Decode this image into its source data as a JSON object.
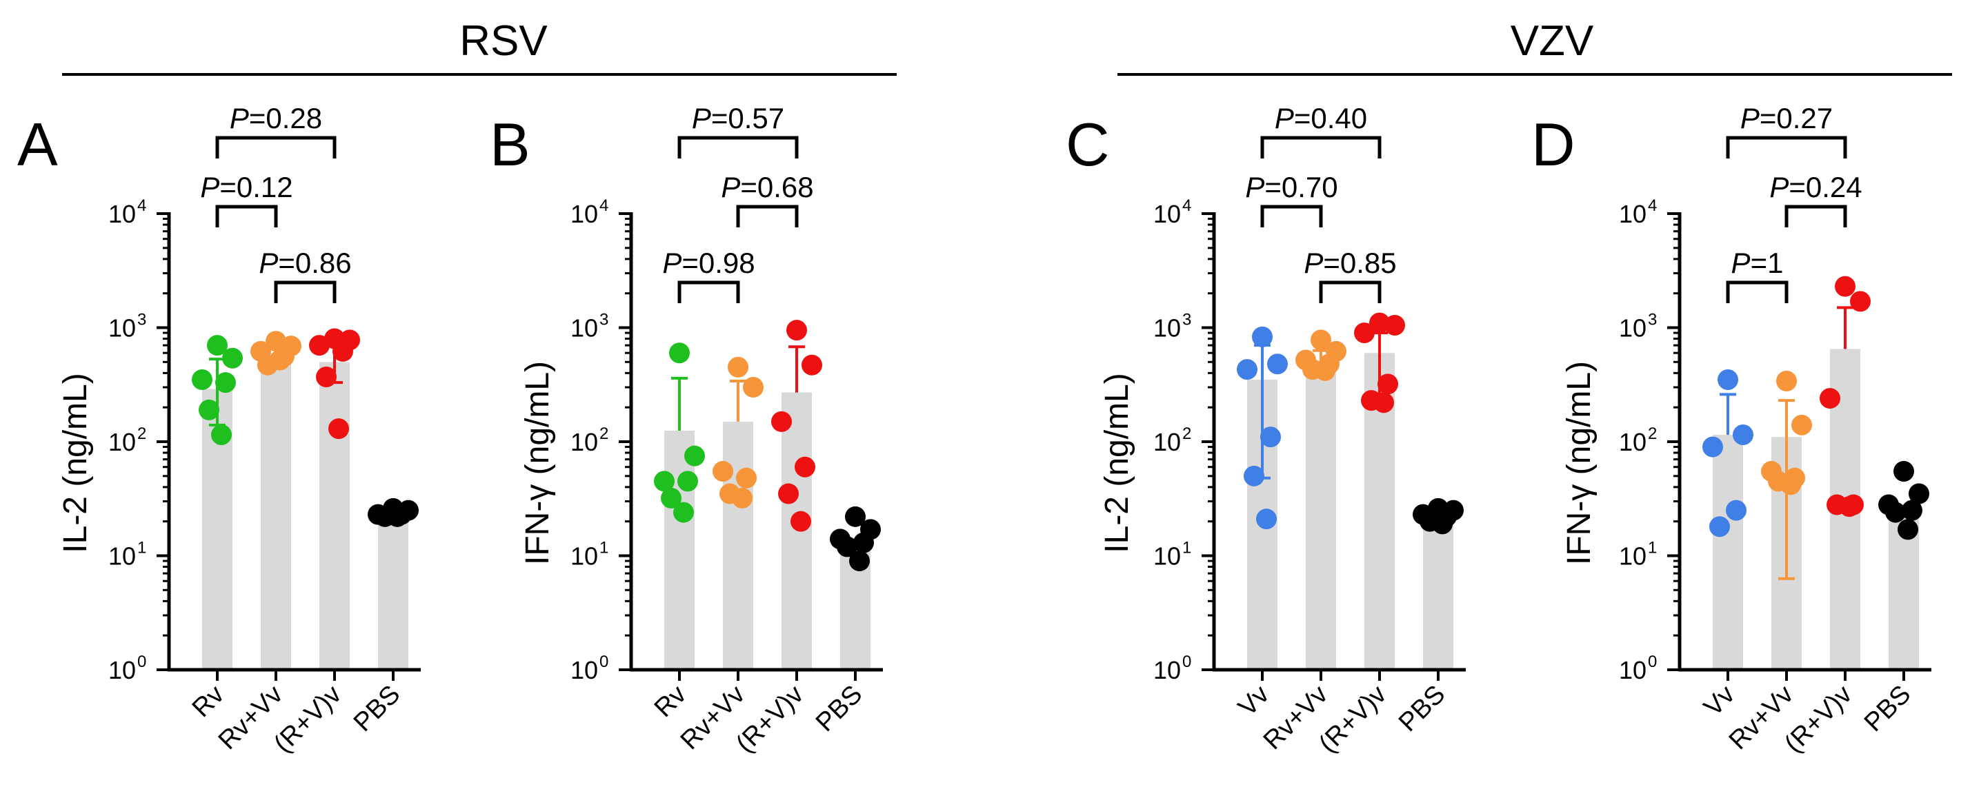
{
  "groups": [
    {
      "label": "RSV"
    },
    {
      "label": "VZV"
    }
  ],
  "chart_data": [
    {
      "type": "bar",
      "panel": "A",
      "group": "RSV",
      "ylabel": "IL-2 (ng/mL)",
      "yscale": "log",
      "ylim": [
        1,
        10000
      ],
      "yticks": [
        {
          "base": "10",
          "exp": "0"
        },
        {
          "base": "10",
          "exp": "1"
        },
        {
          "base": "10",
          "exp": "2"
        },
        {
          "base": "10",
          "exp": "3"
        },
        {
          "base": "10",
          "exp": "4"
        }
      ],
      "categories": [
        "Rv",
        "Rv+Vv",
        "(R+V)v",
        "PBS"
      ],
      "colors": [
        "#1fbf1f",
        "#f7953b",
        "#ee1111",
        "#000000"
      ],
      "bar_color": "#d9d9d9",
      "means": [
        290,
        600,
        500,
        22
      ],
      "errors": [
        {
          "lower": 140,
          "upper": 530
        },
        {
          "lower": 520,
          "upper": 690
        },
        {
          "lower": 330,
          "upper": 740
        },
        null
      ],
      "points": [
        [
          700,
          540,
          350,
          330,
          190,
          115
        ],
        [
          760,
          690,
          620,
          560,
          470,
          520
        ],
        [
          800,
          780,
          700,
          620,
          370,
          130
        ],
        [
          26,
          25,
          23,
          23,
          22,
          22
        ]
      ],
      "comparisons": [
        {
          "pre": "P",
          "text": "=0.28",
          "from": 0,
          "to": 2,
          "level": 3
        },
        {
          "pre": "P",
          "text": "=0.12",
          "from": 0,
          "to": 1,
          "level": 2
        },
        {
          "pre": "P",
          "text": "=0.86",
          "from": 1,
          "to": 2,
          "level": 1
        }
      ]
    },
    {
      "type": "bar",
      "panel": "B",
      "group": "RSV",
      "ylabel": "IFN-γ (ng/mL)",
      "yscale": "log",
      "ylim": [
        1,
        10000
      ],
      "yticks": [
        {
          "base": "10",
          "exp": "0"
        },
        {
          "base": "10",
          "exp": "1"
        },
        {
          "base": "10",
          "exp": "2"
        },
        {
          "base": "10",
          "exp": "3"
        },
        {
          "base": "10",
          "exp": "4"
        }
      ],
      "categories": [
        "Rv",
        "Rv+Vv",
        "(R+V)v",
        "PBS"
      ],
      "colors": [
        "#1fbf1f",
        "#f7953b",
        "#ee1111",
        "#000000"
      ],
      "bar_color": "#d9d9d9",
      "means": [
        125,
        150,
        270,
        13
      ],
      "errors": [
        {
          "lower": null,
          "upper": 360
        },
        {
          "lower": null,
          "upper": 340
        },
        {
          "lower": null,
          "upper": 680
        },
        null
      ],
      "points": [
        [
          600,
          75,
          45,
          45,
          32,
          24
        ],
        [
          450,
          300,
          55,
          48,
          35,
          32
        ],
        [
          950,
          470,
          150,
          60,
          35,
          20
        ],
        [
          22,
          17,
          14,
          13,
          12,
          9
        ]
      ],
      "comparisons": [
        {
          "pre": "P",
          "text": "=0.57",
          "from": 0,
          "to": 2,
          "level": 3
        },
        {
          "pre": "P",
          "text": "=0.68",
          "from": 1,
          "to": 2,
          "level": 2
        },
        {
          "pre": "P",
          "text": "=0.98",
          "from": 0,
          "to": 1,
          "level": 1
        }
      ]
    },
    {
      "type": "bar",
      "panel": "C",
      "group": "VZV",
      "ylabel": "IL-2 (ng/mL)",
      "yscale": "log",
      "ylim": [
        1,
        10000
      ],
      "yticks": [
        {
          "base": "10",
          "exp": "0"
        },
        {
          "base": "10",
          "exp": "1"
        },
        {
          "base": "10",
          "exp": "2"
        },
        {
          "base": "10",
          "exp": "3"
        },
        {
          "base": "10",
          "exp": "4"
        }
      ],
      "categories": [
        "Vv",
        "Rv+Vv",
        "(R+V)v",
        "PBS"
      ],
      "colors": [
        "#3f7fe6",
        "#f7953b",
        "#ee1111",
        "#000000"
      ],
      "bar_color": "#d9d9d9",
      "means": [
        350,
        500,
        600,
        22
      ],
      "errors": [
        {
          "lower": 48,
          "upper": 700
        },
        {
          "lower": 450,
          "upper": 630
        },
        {
          "lower": 230,
          "upper": 900
        },
        null
      ],
      "points": [
        [
          830,
          480,
          430,
          110,
          50,
          21
        ],
        [
          780,
          620,
          520,
          480,
          430,
          420
        ],
        [
          1100,
          1050,
          900,
          320,
          230,
          220
        ],
        [
          26,
          25,
          23,
          22,
          20,
          19
        ]
      ],
      "comparisons": [
        {
          "pre": "P",
          "text": "=0.40",
          "from": 0,
          "to": 2,
          "level": 3
        },
        {
          "pre": "P",
          "text": "=0.70",
          "from": 0,
          "to": 1,
          "level": 2
        },
        {
          "pre": "P",
          "text": "=0.85",
          "from": 1,
          "to": 2,
          "level": 1
        }
      ]
    },
    {
      "type": "bar",
      "panel": "D",
      "group": "VZV",
      "ylabel": "IFN-γ (ng/mL)",
      "yscale": "log",
      "ylim": [
        1,
        10000
      ],
      "yticks": [
        {
          "base": "10",
          "exp": "0"
        },
        {
          "base": "10",
          "exp": "1"
        },
        {
          "base": "10",
          "exp": "2"
        },
        {
          "base": "10",
          "exp": "3"
        },
        {
          "base": "10",
          "exp": "4"
        }
      ],
      "categories": [
        "Vv",
        "Rv+Vv",
        "(R+V)v",
        "PBS"
      ],
      "colors": [
        "#3f7fe6",
        "#f7953b",
        "#ee1111",
        "#000000"
      ],
      "bar_color": "#d9d9d9",
      "means": [
        115,
        110,
        650,
        28
      ],
      "errors": [
        {
          "lower": null,
          "upper": 260
        },
        {
          "lower": 6.3,
          "upper": 230
        },
        {
          "lower": null,
          "upper": 1500
        },
        null
      ],
      "points": [
        [
          350,
          115,
          90,
          25,
          18
        ],
        [
          340,
          140,
          55,
          48,
          45,
          42
        ],
        [
          2300,
          1700,
          240,
          28,
          28,
          27
        ],
        [
          55,
          35,
          28,
          25,
          24,
          17
        ]
      ],
      "comparisons": [
        {
          "pre": "P",
          "text": "=0.27",
          "from": 0,
          "to": 2,
          "level": 3
        },
        {
          "pre": "P",
          "text": "=0.24",
          "from": 1,
          "to": 2,
          "level": 2
        },
        {
          "pre": "P",
          "text": "=1",
          "from": 0,
          "to": 1,
          "level": 1
        }
      ]
    }
  ]
}
